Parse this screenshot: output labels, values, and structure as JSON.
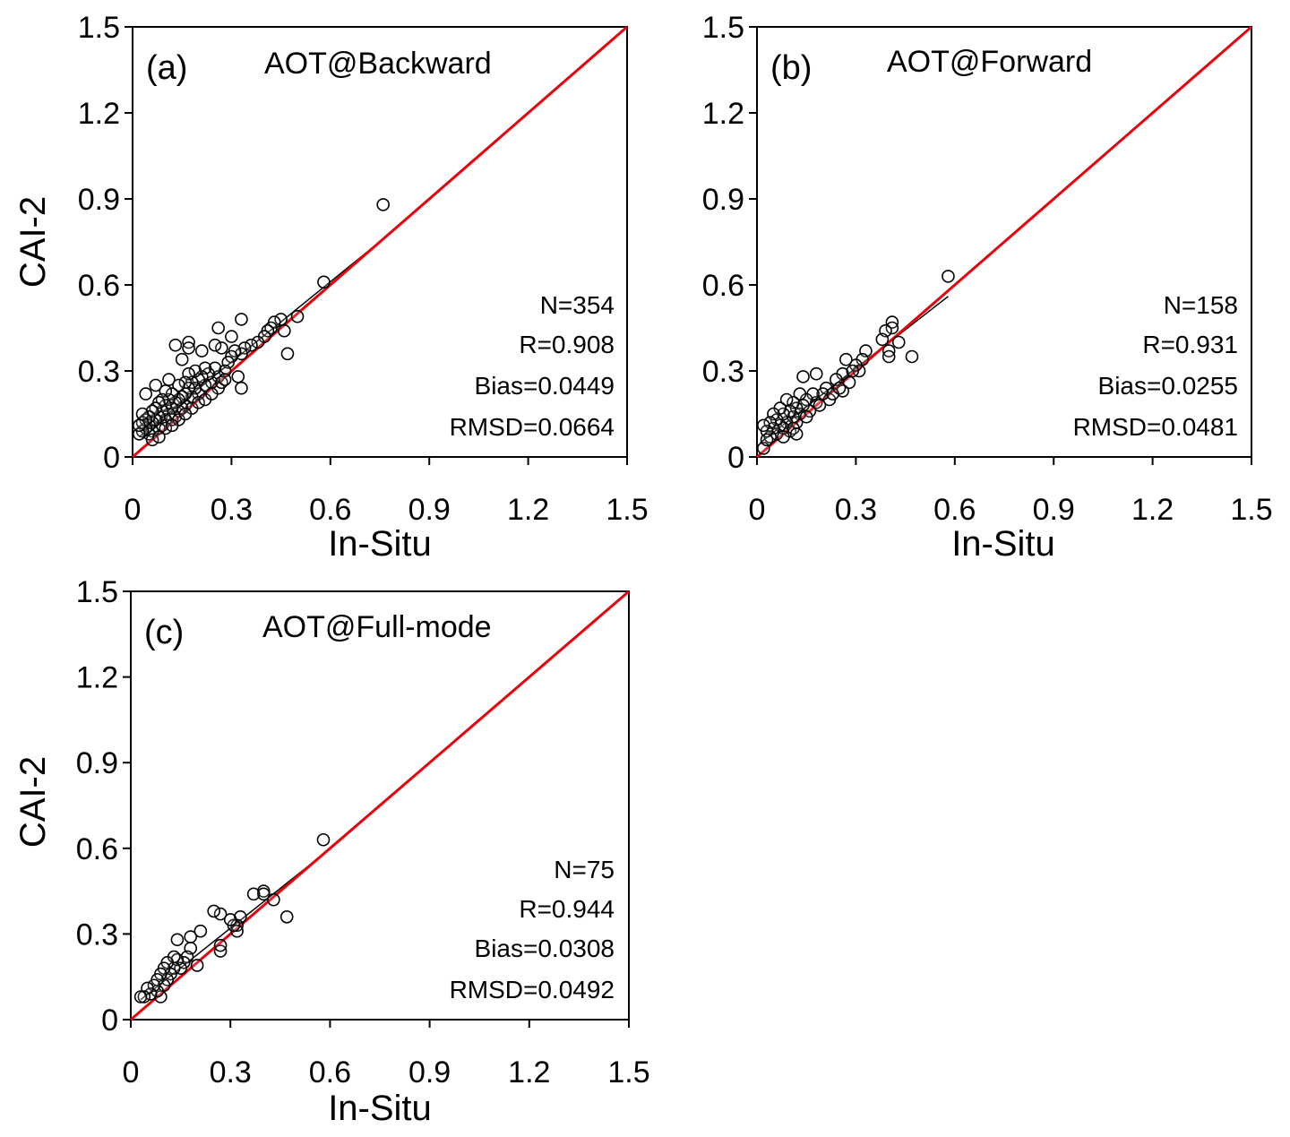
{
  "figure": {
    "background": "#ffffff",
    "one_to_one_color": "#e8000b",
    "fit_color": "#000000",
    "marker_edge": "#000000"
  },
  "chart_data": [
    {
      "type": "scatter",
      "panel": "(a)",
      "title": "AOT@Backward",
      "xlabel": "In-Situ",
      "ylabel": "CAI-2",
      "xlim": [
        0,
        1.5
      ],
      "ylim": [
        0,
        1.5
      ],
      "xticks": [
        "0",
        "0.3",
        "0.6",
        "0.9",
        "1.2",
        "1.5"
      ],
      "yticks": [
        "0",
        "0.3",
        "0.6",
        "0.9",
        "1.2",
        "1.5"
      ],
      "grid": false,
      "stats": [
        "N=354",
        "R=0.908",
        "Bias=0.0449",
        "RMSD=0.0664"
      ],
      "one_to_one": [
        [
          0,
          0
        ],
        [
          1.5,
          1.5
        ]
      ],
      "fit_line": [
        [
          0.02,
          0.07
        ],
        [
          0.76,
          0.76
        ]
      ],
      "series": [
        {
          "points": [
            [
              0.76,
              0.88
            ],
            [
              0.58,
              0.61
            ],
            [
              0.5,
              0.49
            ],
            [
              0.47,
              0.36
            ],
            [
              0.46,
              0.44
            ],
            [
              0.45,
              0.48
            ],
            [
              0.43,
              0.47
            ],
            [
              0.42,
              0.45
            ],
            [
              0.41,
              0.44
            ],
            [
              0.4,
              0.42
            ],
            [
              0.38,
              0.4
            ],
            [
              0.36,
              0.39
            ],
            [
              0.34,
              0.38
            ],
            [
              0.33,
              0.48
            ],
            [
              0.33,
              0.36
            ],
            [
              0.33,
              0.24
            ],
            [
              0.32,
              0.28
            ],
            [
              0.31,
              0.37
            ],
            [
              0.3,
              0.35
            ],
            [
              0.3,
              0.42
            ],
            [
              0.29,
              0.33
            ],
            [
              0.28,
              0.3
            ],
            [
              0.27,
              0.38
            ],
            [
              0.26,
              0.45
            ],
            [
              0.26,
              0.28
            ],
            [
              0.26,
              0.24
            ],
            [
              0.25,
              0.39
            ],
            [
              0.25,
              0.31
            ],
            [
              0.24,
              0.26
            ],
            [
              0.23,
              0.29
            ],
            [
              0.22,
              0.31
            ],
            [
              0.22,
              0.25
            ],
            [
              0.21,
              0.28
            ],
            [
              0.21,
              0.37
            ],
            [
              0.2,
              0.22
            ],
            [
              0.2,
              0.27
            ],
            [
              0.19,
              0.3
            ],
            [
              0.19,
              0.24
            ],
            [
              0.18,
              0.26
            ],
            [
              0.18,
              0.21
            ],
            [
              0.17,
              0.4
            ],
            [
              0.17,
              0.38
            ],
            [
              0.17,
              0.29
            ],
            [
              0.17,
              0.24
            ],
            [
              0.16,
              0.22
            ],
            [
              0.16,
              0.18
            ],
            [
              0.16,
              0.26
            ],
            [
              0.15,
              0.21
            ],
            [
              0.15,
              0.17
            ],
            [
              0.15,
              0.34
            ],
            [
              0.14,
              0.2
            ],
            [
              0.14,
              0.16
            ],
            [
              0.14,
              0.25
            ],
            [
              0.13,
              0.19
            ],
            [
              0.13,
              0.14
            ],
            [
              0.13,
              0.39
            ],
            [
              0.12,
              0.22
            ],
            [
              0.12,
              0.17
            ],
            [
              0.12,
              0.13
            ],
            [
              0.11,
              0.27
            ],
            [
              0.11,
              0.2
            ],
            [
              0.11,
              0.15
            ],
            [
              0.1,
              0.18
            ],
            [
              0.1,
              0.13
            ],
            [
              0.1,
              0.23
            ],
            [
              0.09,
              0.16
            ],
            [
              0.09,
              0.11
            ],
            [
              0.09,
              0.2
            ],
            [
              0.08,
              0.14
            ],
            [
              0.08,
              0.19
            ],
            [
              0.08,
              0.1
            ],
            [
              0.07,
              0.25
            ],
            [
              0.07,
              0.13
            ],
            [
              0.07,
              0.17
            ],
            [
              0.06,
              0.12
            ],
            [
              0.06,
              0.09
            ],
            [
              0.06,
              0.16
            ],
            [
              0.05,
              0.11
            ],
            [
              0.05,
              0.14
            ],
            [
              0.05,
              0.08
            ],
            [
              0.04,
              0.22
            ],
            [
              0.04,
              0.1
            ],
            [
              0.04,
              0.13
            ],
            [
              0.03,
              0.09
            ],
            [
              0.03,
              0.12
            ],
            [
              0.03,
              0.15
            ],
            [
              0.02,
              0.08
            ],
            [
              0.02,
              0.11
            ],
            [
              0.06,
              0.06
            ],
            [
              0.1,
              0.1
            ],
            [
              0.14,
              0.13
            ],
            [
              0.18,
              0.17
            ],
            [
              0.2,
              0.19
            ],
            [
              0.22,
              0.2
            ],
            [
              0.24,
              0.22
            ],
            [
              0.27,
              0.26
            ],
            [
              0.28,
              0.27
            ],
            [
              0.12,
              0.11
            ],
            [
              0.08,
              0.07
            ],
            [
              0.16,
              0.15
            ]
          ]
        }
      ]
    },
    {
      "type": "scatter",
      "panel": "(b)",
      "title": "AOT@Forward",
      "xlabel": "In-Situ",
      "ylabel": "",
      "xlim": [
        0,
        1.5
      ],
      "ylim": [
        0,
        1.5
      ],
      "xticks": [
        "0",
        "0.3",
        "0.6",
        "0.9",
        "1.2",
        "1.5"
      ],
      "yticks": [
        "0",
        "0.3",
        "0.6",
        "0.9",
        "1.2",
        "1.5"
      ],
      "grid": false,
      "stats": [
        "N=158",
        "R=0.931",
        "Bias=0.0255",
        "RMSD=0.0481"
      ],
      "one_to_one": [
        [
          0,
          0
        ],
        [
          1.5,
          1.5
        ]
      ],
      "fit_line": [
        [
          0.01,
          0.05
        ],
        [
          0.58,
          0.56
        ]
      ],
      "series": [
        {
          "points": [
            [
              0.58,
              0.63
            ],
            [
              0.47,
              0.35
            ],
            [
              0.43,
              0.4
            ],
            [
              0.41,
              0.47
            ],
            [
              0.41,
              0.45
            ],
            [
              0.4,
              0.37
            ],
            [
              0.4,
              0.35
            ],
            [
              0.39,
              0.44
            ],
            [
              0.38,
              0.41
            ],
            [
              0.33,
              0.37
            ],
            [
              0.32,
              0.34
            ],
            [
              0.31,
              0.3
            ],
            [
              0.3,
              0.32
            ],
            [
              0.28,
              0.26
            ],
            [
              0.27,
              0.34
            ],
            [
              0.26,
              0.29
            ],
            [
              0.26,
              0.23
            ],
            [
              0.24,
              0.27
            ],
            [
              0.22,
              0.2
            ],
            [
              0.21,
              0.24
            ],
            [
              0.2,
              0.22
            ],
            [
              0.18,
              0.29
            ],
            [
              0.18,
              0.19
            ],
            [
              0.17,
              0.22
            ],
            [
              0.16,
              0.16
            ],
            [
              0.15,
              0.2
            ],
            [
              0.14,
              0.28
            ],
            [
              0.14,
              0.18
            ],
            [
              0.13,
              0.15
            ],
            [
              0.13,
              0.22
            ],
            [
              0.12,
              0.17
            ],
            [
              0.12,
              0.12
            ],
            [
              0.11,
              0.19
            ],
            [
              0.11,
              0.14
            ],
            [
              0.1,
              0.09
            ],
            [
              0.1,
              0.16
            ],
            [
              0.09,
              0.12
            ],
            [
              0.09,
              0.2
            ],
            [
              0.08,
              0.1
            ],
            [
              0.08,
              0.15
            ],
            [
              0.07,
              0.17
            ],
            [
              0.07,
              0.11
            ],
            [
              0.06,
              0.13
            ],
            [
              0.06,
              0.08
            ],
            [
              0.05,
              0.15
            ],
            [
              0.05,
              0.1
            ],
            [
              0.04,
              0.12
            ],
            [
              0.04,
              0.07
            ],
            [
              0.03,
              0.09
            ],
            [
              0.02,
              0.11
            ],
            [
              0.02,
              0.03
            ],
            [
              0.03,
              0.06
            ],
            [
              0.08,
              0.07
            ],
            [
              0.11,
              0.1
            ],
            [
              0.15,
              0.14
            ],
            [
              0.19,
              0.18
            ],
            [
              0.23,
              0.22
            ],
            [
              0.25,
              0.24
            ],
            [
              0.29,
              0.3
            ],
            [
              0.12,
              0.08
            ]
          ]
        }
      ]
    },
    {
      "type": "scatter",
      "panel": "(c)",
      "title": "AOT@Full-mode",
      "xlabel": "In-Situ",
      "ylabel": "CAI-2",
      "xlim": [
        0,
        1.5
      ],
      "ylim": [
        0,
        1.5
      ],
      "xticks": [
        "0",
        "0.3",
        "0.6",
        "0.9",
        "1.2",
        "1.5"
      ],
      "yticks": [
        "0",
        "0.3",
        "0.6",
        "0.9",
        "1.2",
        "1.5"
      ],
      "grid": false,
      "stats": [
        "N=75",
        "R=0.944",
        "Bias=0.0308",
        "RMSD=0.0492"
      ],
      "one_to_one": [
        [
          0,
          0
        ],
        [
          1.5,
          1.5
        ]
      ],
      "fit_line": [
        [
          0.03,
          0.07
        ],
        [
          0.58,
          0.58
        ]
      ],
      "series": [
        {
          "points": [
            [
              0.58,
              0.63
            ],
            [
              0.47,
              0.36
            ],
            [
              0.43,
              0.42
            ],
            [
              0.4,
              0.45
            ],
            [
              0.4,
              0.44
            ],
            [
              0.37,
              0.44
            ],
            [
              0.33,
              0.36
            ],
            [
              0.32,
              0.33
            ],
            [
              0.32,
              0.31
            ],
            [
              0.31,
              0.33
            ],
            [
              0.3,
              0.35
            ],
            [
              0.27,
              0.37
            ],
            [
              0.27,
              0.24
            ],
            [
              0.27,
              0.26
            ],
            [
              0.25,
              0.38
            ],
            [
              0.21,
              0.31
            ],
            [
              0.2,
              0.19
            ],
            [
              0.18,
              0.29
            ],
            [
              0.18,
              0.25
            ],
            [
              0.17,
              0.22
            ],
            [
              0.16,
              0.2
            ],
            [
              0.15,
              0.18
            ],
            [
              0.14,
              0.21
            ],
            [
              0.14,
              0.28
            ],
            [
              0.13,
              0.22
            ],
            [
              0.13,
              0.18
            ],
            [
              0.12,
              0.16
            ],
            [
              0.11,
              0.2
            ],
            [
              0.11,
              0.14
            ],
            [
              0.1,
              0.18
            ],
            [
              0.1,
              0.12
            ],
            [
              0.09,
              0.16
            ],
            [
              0.09,
              0.08
            ],
            [
              0.08,
              0.14
            ],
            [
              0.08,
              0.1
            ],
            [
              0.07,
              0.12
            ],
            [
              0.06,
              0.09
            ],
            [
              0.05,
              0.11
            ],
            [
              0.04,
              0.08
            ],
            [
              0.03,
              0.08
            ]
          ]
        }
      ]
    }
  ]
}
